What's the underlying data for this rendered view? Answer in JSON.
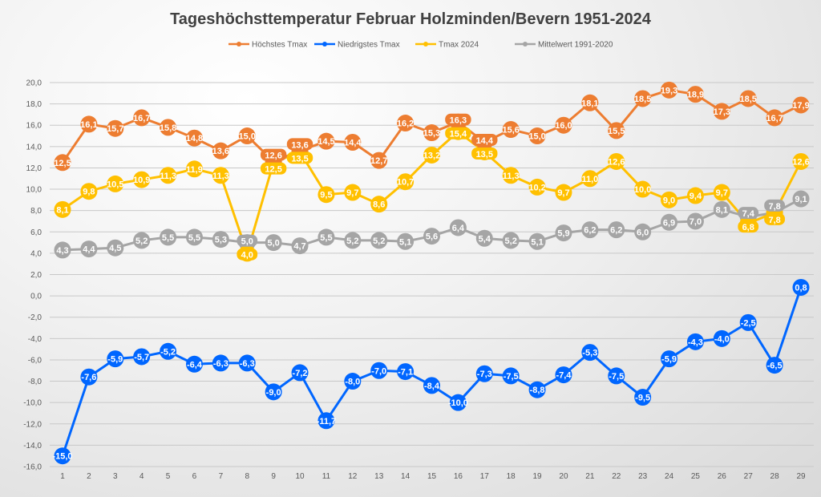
{
  "chart_data": {
    "type": "line",
    "title": "Tageshöchsttemperatur Februar Holzminden/Bevern 1951-2024",
    "xlabel": "",
    "ylabel": "",
    "x": [
      1,
      2,
      3,
      4,
      5,
      6,
      7,
      8,
      9,
      10,
      11,
      12,
      13,
      14,
      15,
      16,
      17,
      18,
      19,
      20,
      21,
      22,
      23,
      24,
      25,
      26,
      27,
      28,
      29
    ],
    "ylim": [
      -16,
      20
    ],
    "yticks": [
      "-16,0",
      "-14,0",
      "-12,0",
      "-10,0",
      "-8,0",
      "-6,0",
      "-4,0",
      "-2,0",
      "0,0",
      "2,0",
      "4,0",
      "6,0",
      "8,0",
      "10,0",
      "12,0",
      "14,0",
      "16,0",
      "18,0",
      "20,0"
    ],
    "grid": true,
    "legend_position": "top",
    "series": [
      {
        "name": "Höchstes Tmax",
        "color": "#ed7d31",
        "values": [
          12.5,
          16.1,
          15.7,
          16.7,
          15.8,
          14.8,
          13.6,
          15.0,
          12.6,
          13.6,
          14.5,
          14.4,
          12.7,
          16.2,
          15.3,
          16.3,
          14.4,
          15.6,
          15.0,
          16.0,
          18.1,
          15.5,
          18.5,
          19.3,
          18.9,
          17.3,
          18.5,
          16.7,
          17.9
        ]
      },
      {
        "name": "Niedrigstes Tmax",
        "color": "#0066ff",
        "values": [
          -15.0,
          -7.6,
          -5.9,
          -5.7,
          -5.2,
          -6.4,
          -6.3,
          -6.3,
          -9.0,
          -7.2,
          -11.7,
          -8.0,
          -7.0,
          -7.1,
          -8.4,
          -10.0,
          -7.3,
          -7.5,
          -8.8,
          -7.4,
          -5.3,
          -7.5,
          -9.5,
          -5.9,
          -4.3,
          -4.0,
          -2.5,
          -6.5,
          0.8
        ]
      },
      {
        "name": "Tmax 2024",
        "color": "#ffc000",
        "values": [
          8.1,
          9.8,
          10.5,
          10.9,
          11.3,
          11.9,
          11.3,
          4.0,
          12.5,
          13.5,
          9.5,
          9.7,
          8.6,
          10.7,
          13.2,
          15.4,
          13.5,
          11.3,
          10.2,
          9.7,
          11.0,
          12.6,
          10.0,
          9.0,
          9.4,
          9.7,
          6.8,
          7.8,
          12.6
        ]
      },
      {
        "name": "Mittelwert 1991-2020",
        "color": "#a5a5a5",
        "values": [
          4.3,
          4.4,
          4.5,
          5.2,
          5.5,
          5.5,
          5.3,
          5.0,
          5.0,
          4.7,
          5.5,
          5.2,
          5.2,
          5.1,
          5.6,
          6.4,
          5.4,
          5.2,
          5.1,
          5.9,
          6.2,
          6.2,
          6.0,
          6.9,
          7.0,
          8.1,
          7.4,
          7.8,
          9.1
        ]
      }
    ]
  }
}
